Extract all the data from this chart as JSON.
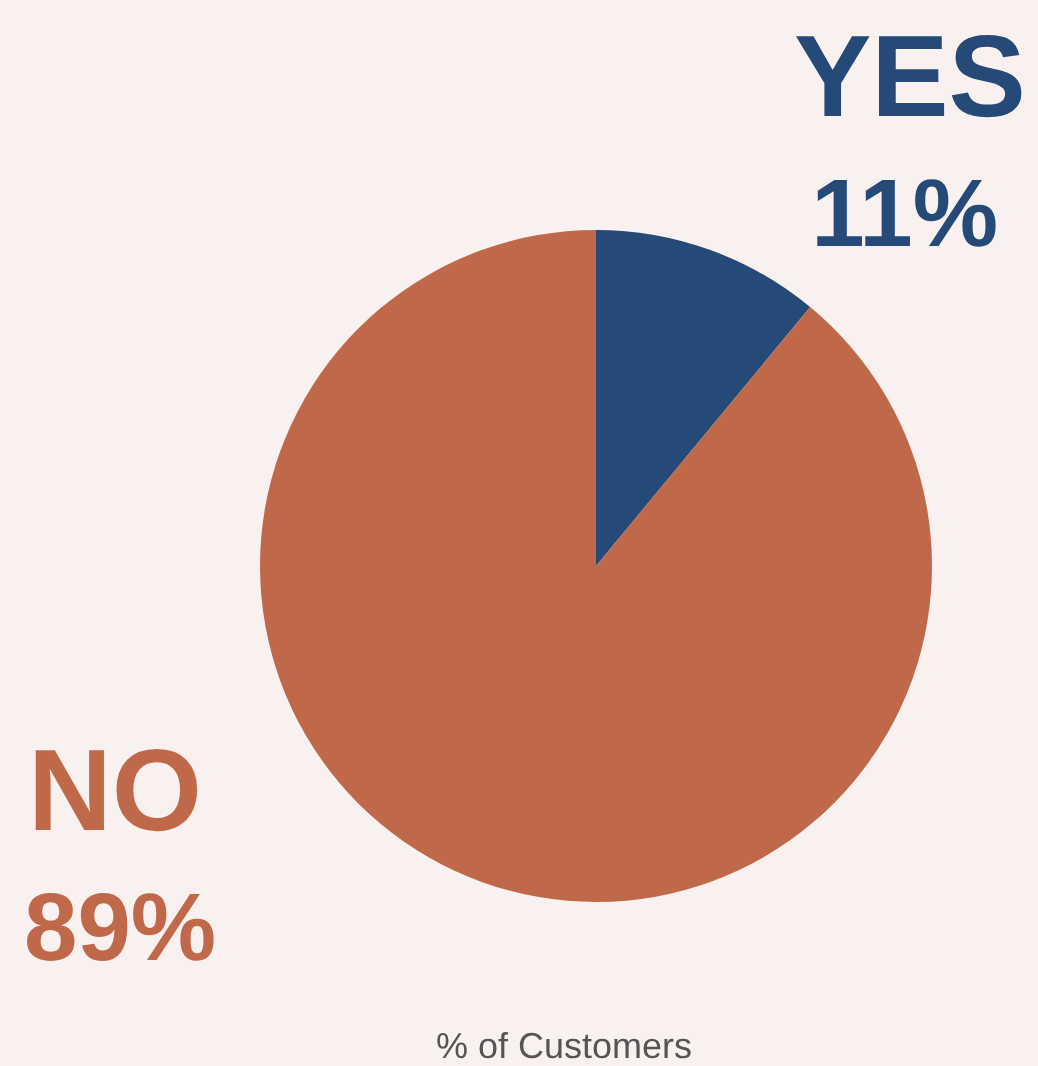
{
  "chart_data": {
    "type": "pie",
    "xlabel": "% of Customers",
    "categories": [
      "YES",
      "NO"
    ],
    "values": [
      11,
      89
    ],
    "value_labels": [
      "11%",
      "89%"
    ],
    "colors": [
      "#264a78",
      "#c0694a"
    ],
    "legend": false
  }
}
